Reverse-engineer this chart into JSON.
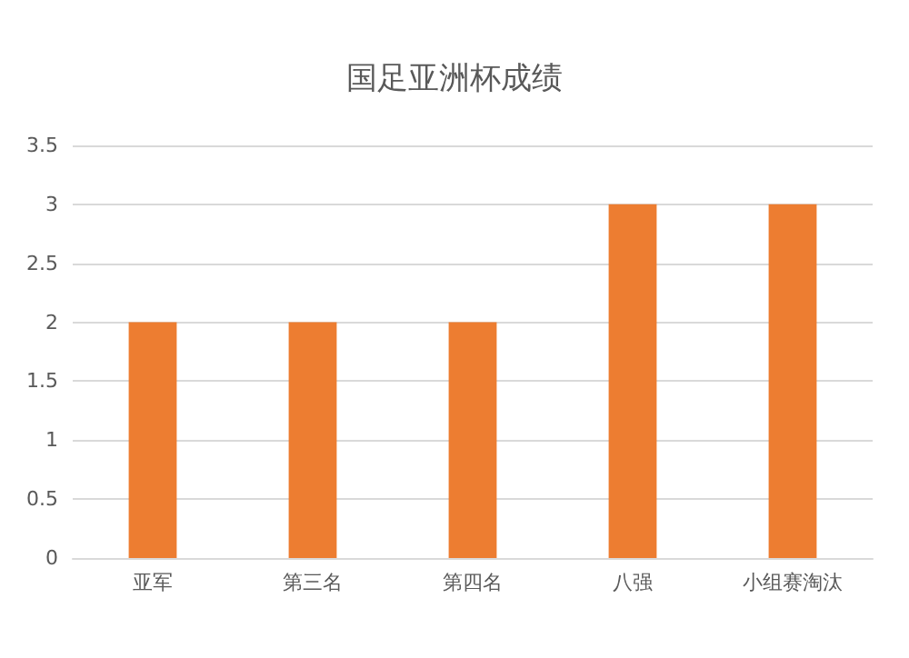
{
  "chart_data": {
    "type": "bar",
    "title": "国足亚洲杯成绩",
    "categories": [
      "亚军",
      "第三名",
      "第四名",
      "八强",
      "小组赛淘汰"
    ],
    "values": [
      2,
      2,
      2,
      3,
      3
    ],
    "color": "#ed7d31",
    "ylim": [
      0,
      3.5
    ],
    "yticks": [
      0,
      0.5,
      1,
      1.5,
      2,
      2.5,
      3,
      3.5
    ],
    "grid": "y"
  }
}
